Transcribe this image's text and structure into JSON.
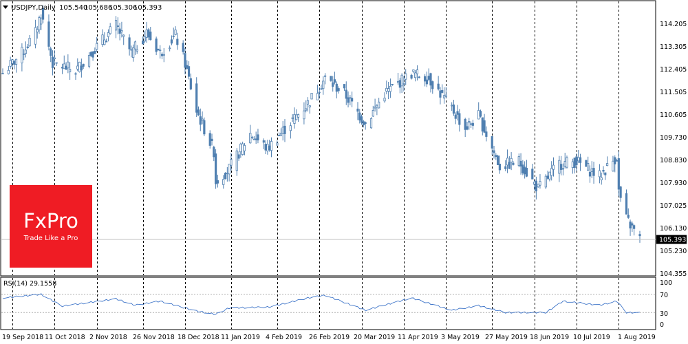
{
  "header": {
    "menu_icon": "triangle-down-icon",
    "symbol": "USDJPY,Daily",
    "open": "105.540",
    "high": "105.686",
    "low": "105.306",
    "close": "105.393"
  },
  "price_panel": {
    "y_ticks": [
      "114.205",
      "113.305",
      "112.405",
      "111.505",
      "110.605",
      "109.730",
      "108.830",
      "107.930",
      "107.025",
      "106.130",
      "105.230",
      "104.355"
    ],
    "current_price": "105.393",
    "colors": {
      "candle": "#4f7fb0",
      "price_line": "#c0c0c0",
      "price_tag_bg": "#000000",
      "grid": "#000000"
    }
  },
  "rsi_panel": {
    "label": "RSI(14) 29.1558",
    "y_ticks": [
      "100",
      "70",
      "30",
      "0"
    ],
    "levels": [
      70,
      30
    ],
    "line_color": "#3c73c8"
  },
  "x_axis": {
    "labels": [
      "19 Sep 2018",
      "11 Oct 2018",
      "2 Nov 2018",
      "26 Nov 2018",
      "18 Dec 2018",
      "11 Jan 2019",
      "4 Feb 2019",
      "26 Feb 2019",
      "20 Mar 2019",
      "11 Apr 2019",
      "3 May 2019",
      "27 May 2019",
      "18 Jun 2019",
      "10 Jul 2019",
      "1 Aug 2019"
    ]
  },
  "logo": {
    "brand": "FxPro",
    "tagline": "Trade Like a Pro",
    "bg": "#ef1c24"
  },
  "chart_data": {
    "type": "candlestick",
    "symbol": "USDJPY",
    "timeframe": "Daily",
    "date_range": [
      "2018-09-14",
      "2019-08-12"
    ],
    "ylim": [
      104.0,
      114.8
    ],
    "approx_close_path": [
      {
        "date": "2018-09-14",
        "close": 112.0
      },
      {
        "date": "2018-09-24",
        "close": 112.8
      },
      {
        "date": "2018-10-01",
        "close": 113.6
      },
      {
        "date": "2018-10-04",
        "close": 114.4
      },
      {
        "date": "2018-10-10",
        "close": 112.4
      },
      {
        "date": "2018-10-22",
        "close": 112.1
      },
      {
        "date": "2018-10-30",
        "close": 112.8
      },
      {
        "date": "2018-11-12",
        "close": 113.9
      },
      {
        "date": "2018-11-20",
        "close": 112.8
      },
      {
        "date": "2018-11-28",
        "close": 113.6
      },
      {
        "date": "2018-12-05",
        "close": 112.8
      },
      {
        "date": "2018-12-13",
        "close": 113.5
      },
      {
        "date": "2018-12-18",
        "close": 112.4
      },
      {
        "date": "2018-12-24",
        "close": 110.5
      },
      {
        "date": "2019-01-02",
        "close": 108.9
      },
      {
        "date": "2019-01-03",
        "close": 107.7
      },
      {
        "date": "2019-01-10",
        "close": 108.2
      },
      {
        "date": "2019-01-21",
        "close": 109.6
      },
      {
        "date": "2019-01-30",
        "close": 109.0
      },
      {
        "date": "2019-02-08",
        "close": 109.8
      },
      {
        "date": "2019-02-20",
        "close": 110.8
      },
      {
        "date": "2019-03-01",
        "close": 111.8
      },
      {
        "date": "2019-03-11",
        "close": 111.2
      },
      {
        "date": "2019-03-22",
        "close": 110.0
      },
      {
        "date": "2019-04-01",
        "close": 111.2
      },
      {
        "date": "2019-04-15",
        "close": 112.0
      },
      {
        "date": "2019-04-24",
        "close": 111.8
      },
      {
        "date": "2019-05-06",
        "close": 110.6
      },
      {
        "date": "2019-05-13",
        "close": 109.8
      },
      {
        "date": "2019-05-20",
        "close": 110.3
      },
      {
        "date": "2019-05-31",
        "close": 108.3
      },
      {
        "date": "2019-06-10",
        "close": 108.5
      },
      {
        "date": "2019-06-20",
        "close": 107.4
      },
      {
        "date": "2019-07-01",
        "close": 108.4
      },
      {
        "date": "2019-07-10",
        "close": 108.5
      },
      {
        "date": "2019-07-22",
        "close": 107.9
      },
      {
        "date": "2019-07-31",
        "close": 108.7
      },
      {
        "date": "2019-08-01",
        "close": 107.3
      },
      {
        "date": "2019-08-05",
        "close": 106.2
      },
      {
        "date": "2019-08-12",
        "close": 105.4
      }
    ],
    "rsi": {
      "period": 14,
      "last": 29.1558,
      "levels": [
        70,
        30
      ],
      "approx_path": [
        {
          "date": "2018-09-14",
          "value": 62
        },
        {
          "date": "2018-10-04",
          "value": 70
        },
        {
          "date": "2018-10-15",
          "value": 44
        },
        {
          "date": "2018-11-12",
          "value": 60
        },
        {
          "date": "2018-11-22",
          "value": 46
        },
        {
          "date": "2018-12-05",
          "value": 55
        },
        {
          "date": "2018-12-24",
          "value": 33
        },
        {
          "date": "2019-01-03",
          "value": 26
        },
        {
          "date": "2019-01-10",
          "value": 40
        },
        {
          "date": "2019-01-31",
          "value": 42
        },
        {
          "date": "2019-02-20",
          "value": 62
        },
        {
          "date": "2019-03-01",
          "value": 68
        },
        {
          "date": "2019-03-22",
          "value": 35
        },
        {
          "date": "2019-04-15",
          "value": 62
        },
        {
          "date": "2019-05-06",
          "value": 35
        },
        {
          "date": "2019-05-20",
          "value": 45
        },
        {
          "date": "2019-06-03",
          "value": 30
        },
        {
          "date": "2019-06-24",
          "value": 30
        },
        {
          "date": "2019-07-03",
          "value": 55
        },
        {
          "date": "2019-07-22",
          "value": 46
        },
        {
          "date": "2019-07-31",
          "value": 55
        },
        {
          "date": "2019-08-05",
          "value": 30
        },
        {
          "date": "2019-08-12",
          "value": 29.16
        }
      ]
    }
  }
}
